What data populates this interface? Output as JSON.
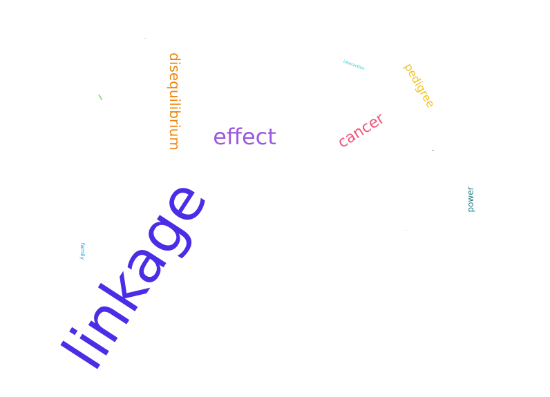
{
  "word_cloud": {
    "words": {
      "linkage": {
        "text": "linkage",
        "color": "#4a2ee6"
      },
      "effect": {
        "text": "effect",
        "color": "#9b59e0"
      },
      "disequilibrium": {
        "text": "disequilibrium",
        "color": "#f0860a"
      },
      "cancer": {
        "text": "cancer",
        "color": "#f0567a"
      },
      "pedigree": {
        "text": "pedigree",
        "color": "#f2c218"
      },
      "power": {
        "text": "power",
        "color": "#1a7d86"
      },
      "family": {
        "text": "family",
        "color": "#2aa0e0"
      },
      "interaction": {
        "text": "interaction",
        "color": "#25c8cf"
      }
    },
    "marks": {
      "green_tick_color": "#8fe088",
      "small_tick_color": "#6ab06a",
      "faint_tick_color": "#d8d8d8"
    }
  }
}
